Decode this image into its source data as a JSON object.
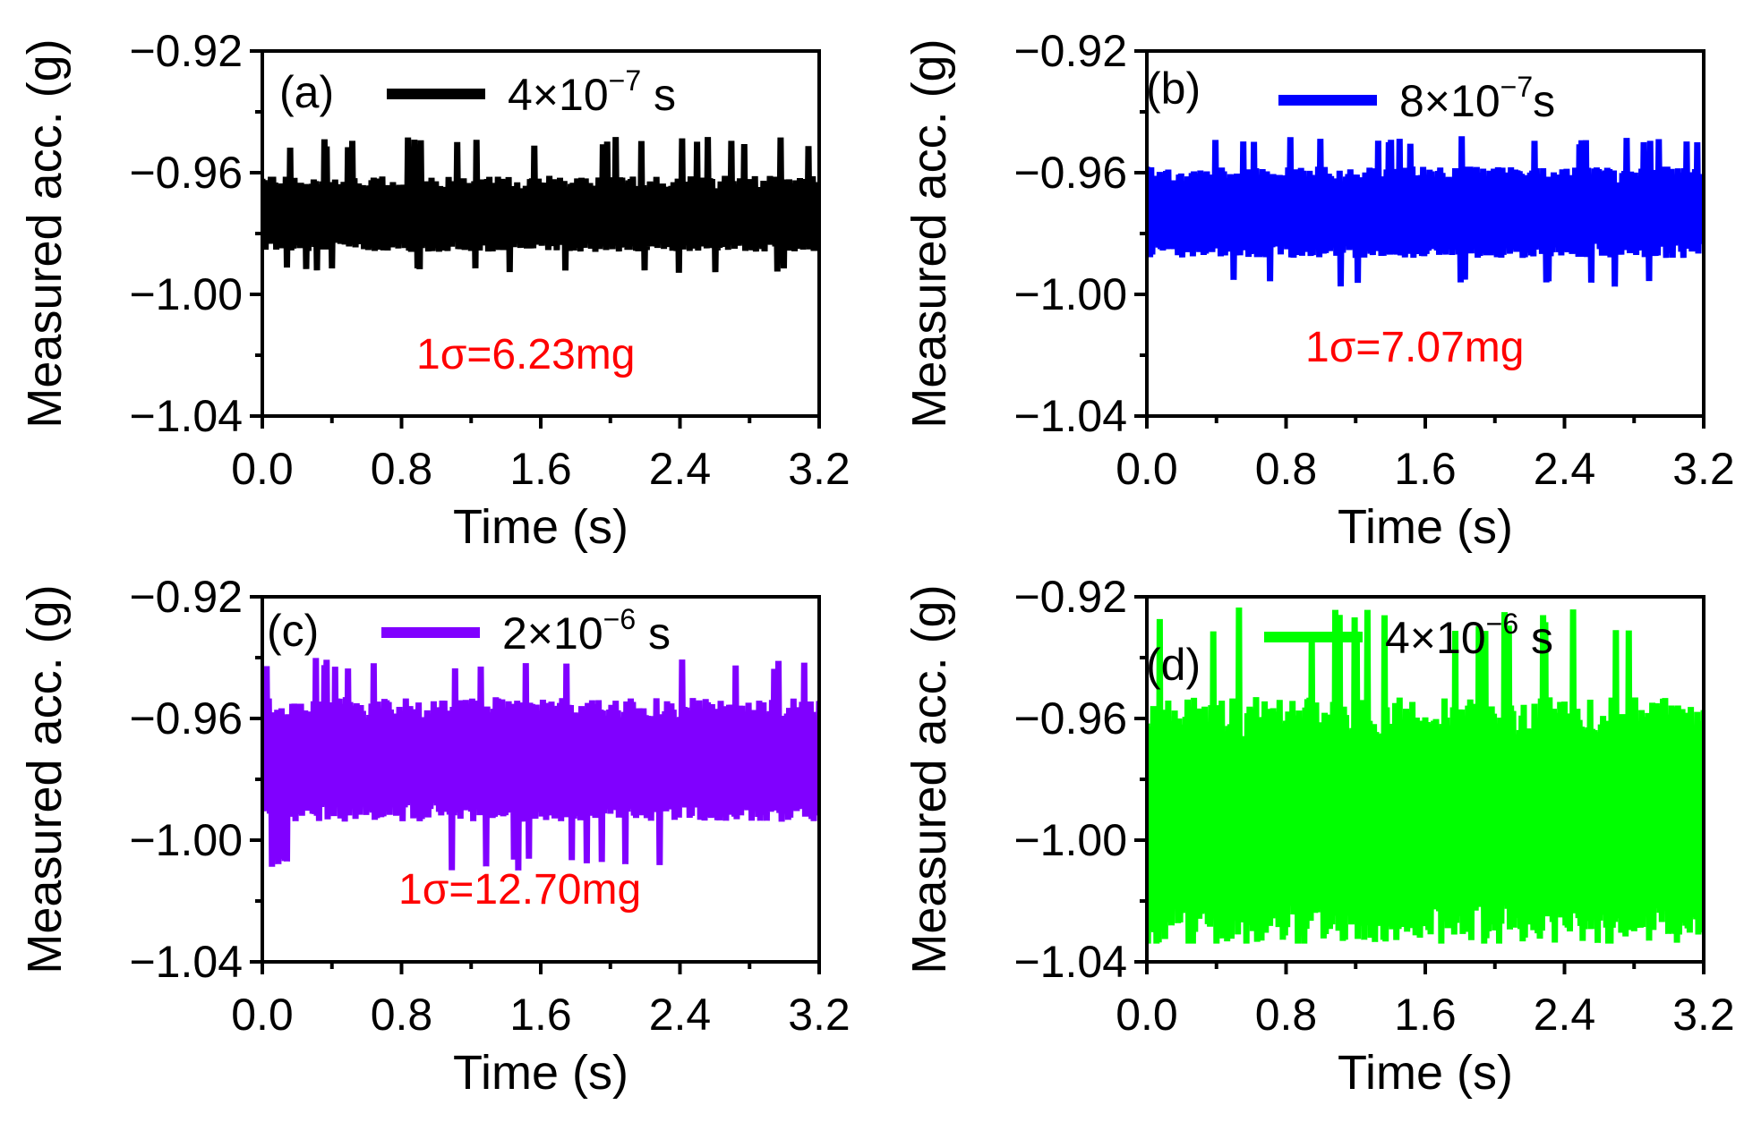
{
  "chart_data": [
    {
      "type": "line",
      "panel_label": "(a)",
      "legend": {
        "name": "4×10",
        "exponent": "−7",
        "unit": " s"
      },
      "color": "#000000",
      "sigma_label": "1σ=6.23mg",
      "sigma_color": "#ff0000",
      "xlabel": "Time (s)",
      "ylabel": "Measured acc. (g)",
      "xlim": [
        0.0,
        3.2
      ],
      "ylim": [
        -1.04,
        -0.92
      ],
      "xticks": [
        "0.0",
        "0.8",
        "1.6",
        "2.4",
        "3.2"
      ],
      "yticks": [
        "−0.92",
        "−0.96",
        "−1.00",
        "−1.04"
      ],
      "series": [
        {
          "name": "4×10^-7 s",
          "mean": -0.975,
          "upper": -0.961,
          "lower": -0.986,
          "peak_max": -0.948,
          "peak_min": -0.993
        }
      ]
    },
    {
      "type": "line",
      "panel_label": "(b)",
      "legend": {
        "name": "8×10",
        "exponent": "−7",
        "unit": "s"
      },
      "color": "#0000ff",
      "sigma_label": "1σ=7.07mg",
      "sigma_color": "#ff0000",
      "xlabel": "Time (s)",
      "ylabel": "Measured acc. (g)",
      "xlim": [
        0.0,
        3.2
      ],
      "ylim": [
        -1.04,
        -0.92
      ],
      "xticks": [
        "0.0",
        "0.8",
        "1.6",
        "2.4",
        "3.2"
      ],
      "yticks": [
        "−0.92",
        "−0.96",
        "−1.00",
        "−1.04"
      ],
      "series": [
        {
          "name": "8×10^-7 s",
          "mean": -0.974,
          "upper": -0.958,
          "lower": -0.988,
          "peak_max": -0.948,
          "peak_min": -0.998
        }
      ]
    },
    {
      "type": "line",
      "panel_label": "(c)",
      "legend": {
        "name": "2×10",
        "exponent": "−6",
        "unit": " s"
      },
      "color": "#8000ff",
      "sigma_label": "1σ=12.70mg",
      "sigma_color": "#ff0000",
      "xlabel": "Time (s)",
      "ylabel": "Measured acc. (g)",
      "xlim": [
        0.0,
        3.2
      ],
      "ylim": [
        -1.04,
        -0.92
      ],
      "xticks": [
        "0.0",
        "0.8",
        "1.6",
        "2.4",
        "3.2"
      ],
      "yticks": [
        "−0.92",
        "−0.96",
        "−1.00",
        "−1.04"
      ],
      "series": [
        {
          "name": "2×10^-6 s",
          "mean": -0.975,
          "upper": -0.953,
          "lower": -0.994,
          "peak_max": -0.94,
          "peak_min": -1.01
        }
      ]
    },
    {
      "type": "line",
      "panel_label": "(d)",
      "legend": {
        "name": "4×10",
        "exponent": "−6",
        "unit": " s"
      },
      "color": "#00ff00",
      "sigma_label": "",
      "sigma_color": "#ff0000",
      "xlabel": "Time (s)",
      "ylabel": "Measured acc. (g)",
      "xlim": [
        0.0,
        3.2
      ],
      "ylim": [
        -1.04,
        -0.92
      ],
      "xticks": [
        "0.0",
        "0.8",
        "1.6",
        "2.4",
        "3.2"
      ],
      "yticks": [
        "−0.92",
        "−0.96",
        "−1.00",
        "−1.04"
      ],
      "series": [
        {
          "name": "4×10^-6 s",
          "mean": -0.994,
          "upper": -0.953,
          "lower": -1.034,
          "peak_max": -0.923,
          "peak_min": -1.034
        }
      ]
    }
  ]
}
